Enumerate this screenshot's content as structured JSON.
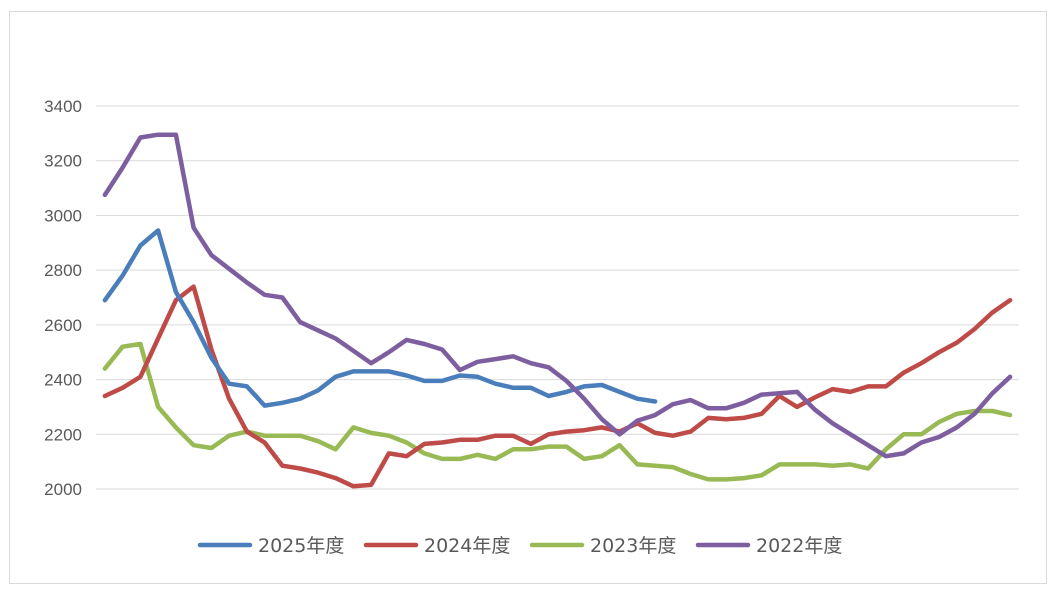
{
  "chart_data": {
    "type": "line",
    "ylim": [
      2000,
      3400
    ],
    "yticks": [
      2000,
      2200,
      2400,
      2600,
      2800,
      3000,
      3200,
      3400
    ],
    "x_count": 52,
    "grid": "horizontal",
    "legend_position": "bottom",
    "series": [
      {
        "name": "2025年度",
        "color": "#4a7ebb",
        "values": [
          2690,
          2780,
          2890,
          2945,
          2720,
          2610,
          2480,
          2385,
          2375,
          2305,
          2315,
          2330,
          2360,
          2410,
          2430,
          2430,
          2430,
          2415,
          2395,
          2395,
          2415,
          2410,
          2385,
          2370,
          2370,
          2340,
          2355,
          2375,
          2380,
          2355,
          2330,
          2320
        ]
      },
      {
        "name": "2024年度",
        "color": "#be4b48",
        "values": [
          2340,
          2370,
          2410,
          2550,
          2690,
          2740,
          2510,
          2330,
          2210,
          2170,
          2085,
          2075,
          2060,
          2040,
          2010,
          2015,
          2130,
          2120,
          2165,
          2170,
          2180,
          2180,
          2195,
          2195,
          2165,
          2200,
          2210,
          2215,
          2225,
          2210,
          2240,
          2205,
          2195,
          2210,
          2260,
          2255,
          2260,
          2275,
          2340,
          2300,
          2335,
          2365,
          2355,
          2375,
          2375,
          2425,
          2460,
          2500,
          2535,
          2585,
          2645,
          2690
        ]
      },
      {
        "name": "2023年度",
        "color": "#98b954",
        "values": [
          2440,
          2520,
          2530,
          2300,
          2225,
          2160,
          2150,
          2195,
          2210,
          2195,
          2195,
          2195,
          2175,
          2145,
          2225,
          2205,
          2195,
          2170,
          2130,
          2110,
          2110,
          2125,
          2110,
          2145,
          2145,
          2155,
          2155,
          2110,
          2120,
          2160,
          2090,
          2085,
          2080,
          2055,
          2035,
          2035,
          2040,
          2050,
          2090,
          2090,
          2090,
          2085,
          2090,
          2075,
          2145,
          2200,
          2200,
          2245,
          2275,
          2285,
          2285,
          2270
        ]
      },
      {
        "name": "2022年度",
        "color": "#7d5fa0",
        "values": [
          3075,
          3175,
          3285,
          3295,
          3295,
          2955,
          2855,
          2805,
          2755,
          2710,
          2700,
          2610,
          2580,
          2550,
          2505,
          2460,
          2500,
          2545,
          2530,
          2510,
          2435,
          2465,
          2475,
          2485,
          2460,
          2445,
          2395,
          2330,
          2255,
          2200,
          2250,
          2270,
          2310,
          2325,
          2295,
          2295,
          2315,
          2345,
          2350,
          2355,
          2290,
          2240,
          2200,
          2160,
          2120,
          2130,
          2170,
          2190,
          2225,
          2275,
          2350,
          2410
        ]
      }
    ]
  }
}
